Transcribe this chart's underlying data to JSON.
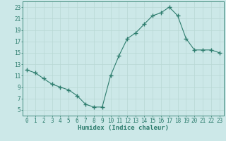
{
  "x": [
    0,
    1,
    2,
    3,
    4,
    5,
    6,
    7,
    8,
    9,
    10,
    11,
    12,
    13,
    14,
    15,
    16,
    17,
    18,
    19,
    20,
    21,
    22,
    23
  ],
  "y": [
    12.0,
    11.5,
    10.5,
    9.5,
    9.0,
    8.5,
    7.5,
    6.0,
    5.5,
    5.5,
    11.0,
    14.5,
    17.5,
    18.5,
    20.0,
    21.5,
    22.0,
    23.0,
    21.5,
    17.5,
    15.5,
    15.5,
    15.5,
    15.0
  ],
  "xlabel": "Humidex (Indice chaleur)",
  "xlim": [
    -0.5,
    23.5
  ],
  "ylim": [
    4,
    24
  ],
  "yticks": [
    5,
    7,
    9,
    11,
    13,
    15,
    17,
    19,
    21,
    23
  ],
  "xticks": [
    0,
    1,
    2,
    3,
    4,
    5,
    6,
    7,
    8,
    9,
    10,
    11,
    12,
    13,
    14,
    15,
    16,
    17,
    18,
    19,
    20,
    21,
    22,
    23
  ],
  "line_color": "#2e7d6e",
  "marker": "+",
  "marker_size": 4,
  "bg_color": "#cce8e8",
  "grid_color": "#b8d8d4",
  "label_fontsize": 6.5,
  "tick_fontsize": 5.5
}
